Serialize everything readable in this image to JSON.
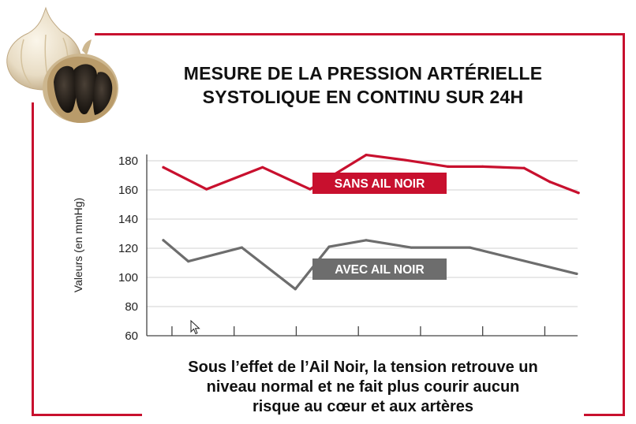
{
  "title": {
    "line1": "MESURE DE LA PRESSION ARTÉRIELLE",
    "line2": "SYSTOLIQUE EN CONTINU SUR 24H"
  },
  "caption": {
    "line1": "Sous l’effet de l’Ail Noir, la tension retrouve un",
    "line2": "niveau normal et ne fait plus courir aucun",
    "line3": "risque au cœur et aux artères"
  },
  "colors": {
    "accent": "#c8102e",
    "gray_series": "#6d6d6d",
    "grid": "#d9d9d9",
    "text": "#111111"
  },
  "chart_data": {
    "type": "line",
    "title": "MESURE DE LA PRESSION ARTÉRIELLE SYSTOLIQUE EN CONTINU SUR 24H",
    "xlabel": "",
    "ylabel": "Valeurs (en mmHg)",
    "ylim": [
      60,
      185
    ],
    "yticks": [
      60,
      80,
      100,
      120,
      140,
      160,
      180
    ],
    "xlim": [
      0,
      24
    ],
    "xticks": [
      0.5,
      4.1,
      7.7,
      11.3,
      14.9,
      18.5,
      22.1
    ],
    "grid": true,
    "series": [
      {
        "name": "SANS AIL NOIR",
        "color": "#c8102e",
        "x": [
          0,
          2.5,
          5.75,
          8.5,
          11.75,
          14,
          16.5,
          18.5,
          20.9,
          22.4,
          24.05
        ],
        "y": [
          175.5,
          160.5,
          175.5,
          160.5,
          184,
          180.5,
          176,
          176,
          175,
          165.5,
          158
        ]
      },
      {
        "name": "AVEC AIL NOIR",
        "color": "#6d6d6d",
        "x": [
          0,
          1.45,
          4.55,
          7.65,
          9.6,
          11.75,
          14.35,
          17.75,
          23.95
        ],
        "y": [
          125.5,
          111,
          120.5,
          92,
          121,
          125.5,
          120.5,
          120.5,
          102.5
        ]
      }
    ]
  }
}
